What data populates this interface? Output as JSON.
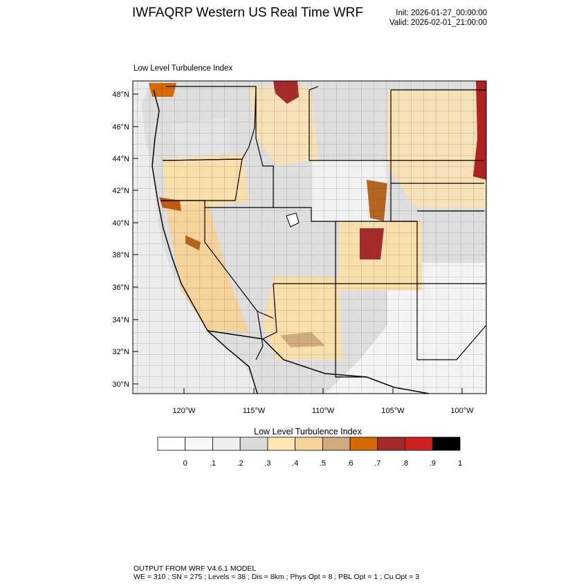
{
  "header": {
    "title": "IWFAQRP Western US Real Time WRF",
    "init": "Init: 2026-01-27_00:00:00",
    "valid": "Valid: 2026-02-01_21:00:00"
  },
  "map": {
    "field_label": "Low Level Turbulence Index",
    "lat_labels": [
      "48°N",
      "46°N",
      "44°N",
      "42°N",
      "40°N",
      "38°N",
      "36°N",
      "34°N",
      "32°N",
      "30°N"
    ],
    "lon_labels": [
      "120°W",
      "115°W",
      "110°W",
      "105°W",
      "100°W"
    ]
  },
  "colorbar": {
    "title": "Low Level Turbulence Index",
    "colors": [
      "#ffffff",
      "#f7f7f7",
      "#eeeeee",
      "#dadada",
      "#ffe6b3",
      "#f6d39a",
      "#cfab7f",
      "#d46a00",
      "#a52a2a",
      "#d02020",
      "#000000"
    ],
    "tick_labels": [
      "0",
      ".1",
      ".2",
      ".3",
      ".4",
      ".5",
      ".6",
      ".7",
      ".8",
      ".9",
      "1"
    ]
  },
  "footer": {
    "line1": "OUTPUT FROM WRF V4.6.1 MODEL",
    "line2": "WE = 310 ; SN = 275 ; Levels = 38 ; Dis = 8km ; Phys Opt = 8 ; PBL Opt = 1 ; Cu Opt = 3"
  }
}
